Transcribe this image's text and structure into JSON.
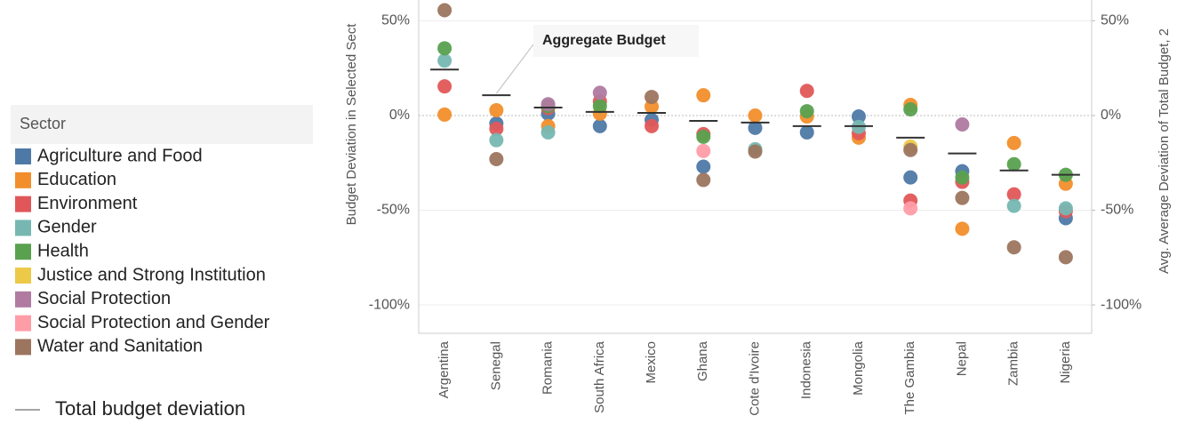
{
  "chart_data": {
    "type": "dot",
    "annotation": "Aggregate Budget",
    "y_label": "Budget Deviation in Selected Sect",
    "y2_label": "Avg. Average Deviation of Total Budget, 2",
    "legend_title": "Sector",
    "categories": [
      "Argentina",
      "Senegal",
      "Romania",
      "South Africa",
      "Mexico",
      "Ghana",
      "Cote d'Ivoire",
      "Indonesia",
      "Mongolia",
      "The Gambia",
      "Nepal",
      "Zambia",
      "Nigeria"
    ],
    "ylim": [
      -115,
      61
    ],
    "yticks": [
      {
        "value": 50,
        "label": "50%"
      },
      {
        "value": 0,
        "label": "0%"
      },
      {
        "value": -50,
        "label": "-50%"
      },
      {
        "value": -100,
        "label": "-100%"
      }
    ],
    "y2lim": [
      -115,
      61
    ],
    "y2ticks": [
      {
        "value": 50,
        "label": "50%"
      },
      {
        "value": 0,
        "label": "0%"
      },
      {
        "value": -50,
        "label": "-50%"
      },
      {
        "value": -100,
        "label": "-100%"
      }
    ],
    "grid": true,
    "series": [
      {
        "name": "Agriculture and Food",
        "color": "#4e79a7",
        "values": [
          null,
          -4.2,
          1,
          -5.6,
          -2.3,
          -27,
          -6.5,
          -8.9,
          -0.5,
          -32.7,
          -29.4,
          null,
          -54.2
        ]
      },
      {
        "name": "Education",
        "color": "#f28e2b",
        "values": [
          0.5,
          2.8,
          -5.6,
          1,
          4.7,
          10.7,
          0,
          -0.5,
          -11.7,
          5.6,
          -59.8,
          -14.5,
          -36
        ]
      },
      {
        "name": "Environment",
        "color": "#e15759",
        "values": [
          15.4,
          -7,
          4,
          7.5,
          -5.6,
          -9.8,
          null,
          13,
          -9.3,
          -44.9,
          -35,
          -41.6,
          -50.5
        ]
      },
      {
        "name": "Gender",
        "color": "#76b7b2",
        "values": [
          29,
          -13,
          -8.9,
          null,
          null,
          null,
          -17.8,
          null,
          -6,
          null,
          null,
          -47.7,
          -49
        ]
      },
      {
        "name": "Health",
        "color": "#59a14f",
        "values": [
          35.5,
          null,
          5,
          5,
          null,
          -11.2,
          null,
          2.3,
          null,
          3.3,
          -32.7,
          -25.7,
          -31.3
        ]
      },
      {
        "name": "Justice and Strong Institution",
        "color": "#edc948",
        "values": [
          null,
          null,
          null,
          null,
          null,
          null,
          null,
          null,
          null,
          -16.4,
          null,
          null,
          null
        ]
      },
      {
        "name": "Social Protection",
        "color": "#b07aa1",
        "values": [
          null,
          null,
          6,
          12,
          null,
          null,
          null,
          null,
          null,
          null,
          -4.7,
          null,
          null
        ]
      },
      {
        "name": "Social Protection and Gender",
        "color": "#ff9da7",
        "values": [
          null,
          null,
          null,
          null,
          null,
          -18.7,
          null,
          null,
          null,
          -49,
          null,
          null,
          null
        ]
      },
      {
        "name": "Water and Sanitation",
        "color": "#9c755f",
        "values": [
          55.6,
          -23,
          null,
          null,
          9.8,
          -34,
          -19,
          null,
          null,
          -18.2,
          -43.5,
          -69.6,
          -74.8
        ]
      },
      {
        "name": "Total budget deviation",
        "color": "#333333",
        "axis": "y2",
        "values": [
          24.3,
          10.7,
          4.2,
          1.9,
          1.4,
          -2.8,
          -3.7,
          -5.6,
          -5.6,
          -11.7,
          -20,
          -29,
          -31.3
        ]
      }
    ]
  }
}
